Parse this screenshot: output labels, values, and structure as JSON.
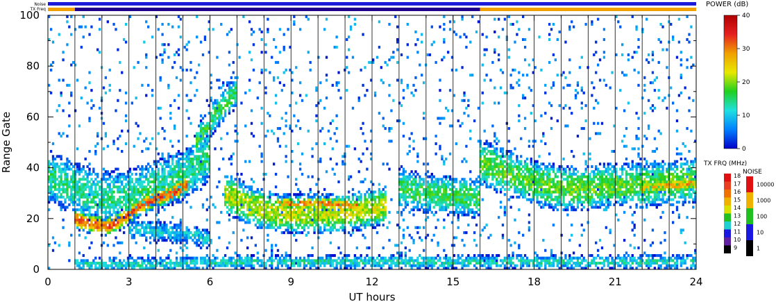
{
  "chart_data": {
    "type": "heatmap",
    "xlabel": "UT hours",
    "ylabel": "Range Gate",
    "xlim": [
      0,
      24
    ],
    "ylim": [
      0,
      100
    ],
    "x_ticks": [
      "0",
      "3",
      "6",
      "9",
      "12",
      "15",
      "18",
      "21",
      "24"
    ],
    "x_tick_values": [
      0,
      3,
      6,
      9,
      12,
      15,
      18,
      21,
      24
    ],
    "y_ticks": [
      "0",
      "20",
      "40",
      "60",
      "80",
      "100"
    ],
    "y_tick_values": [
      0,
      20,
      40,
      60,
      80,
      100
    ],
    "scan_boundaries_hours": [
      1.0,
      2.0,
      3.0,
      4.0,
      5.0,
      6.0,
      7.0,
      8.0,
      9.0,
      10.0,
      11.0,
      12.0,
      13.0,
      14.0,
      15.0,
      16.0,
      17.0,
      18.0,
      19.0,
      20.0,
      21.0,
      22.0,
      23.0
    ],
    "top_bars": {
      "noise_label": "Noise",
      "txfreq_label": "TX Freq",
      "noise_color": "#1a1ad8",
      "txfreq_segments": [
        {
          "start": 0.0,
          "end": 1.0,
          "color": "#f0a000"
        },
        {
          "start": 1.0,
          "end": 16.0,
          "color": "#20008c"
        },
        {
          "start": 16.0,
          "end": 24.0,
          "color": "#f0a000"
        }
      ]
    },
    "echo_bands": [
      {
        "t": [
          0.0,
          1.0,
          2.0,
          3.0,
          4.0,
          5.0,
          6.0
        ],
        "gate": [
          37,
          32,
          28,
          29,
          33,
          37,
          45
        ],
        "half_width": 8,
        "power_db": 14
      },
      {
        "t": [
          1.0,
          1.6,
          2.2,
          2.8,
          3.4,
          4.0,
          4.6,
          5.2
        ],
        "gate": [
          20,
          18,
          17,
          20,
          25,
          28,
          30,
          34
        ],
        "half_width": 3,
        "power_db": 32
      },
      {
        "t": [
          3.0,
          4.0,
          5.0,
          6.0
        ],
        "gate": [
          16,
          15,
          14,
          12
        ],
        "half_width": 3,
        "power_db": 10
      },
      {
        "t": [
          5.5,
          6.0,
          6.5,
          7.0
        ],
        "gate": [
          50,
          58,
          65,
          70
        ],
        "half_width": 5,
        "power_db": 16
      },
      {
        "t": [
          6.5,
          7.5,
          8.5,
          9.5,
          10.5,
          11.5,
          12.5
        ],
        "gate": [
          30,
          25,
          22,
          22,
          22,
          23,
          25
        ],
        "half_width": 6,
        "power_db": 22
      },
      {
        "t": [
          8.5,
          9.5,
          10.5,
          11.5
        ],
        "gate": [
          26,
          26,
          26,
          25
        ],
        "half_width": 2,
        "power_db": 30
      },
      {
        "t": [
          13.0,
          14.0,
          15.0,
          16.0
        ],
        "gate": [
          32,
          30,
          29,
          28
        ],
        "half_width": 6,
        "power_db": 16
      },
      {
        "t": [
          16.0,
          17.0,
          18.0,
          19.0,
          20.0,
          21.0,
          22.0,
          23.0,
          24.0
        ],
        "gate": [
          42,
          38,
          34,
          32,
          32,
          33,
          33,
          34,
          35
        ],
        "half_width": 7,
        "power_db": 18
      },
      {
        "t": [
          22.0,
          23.0,
          24.0
        ],
        "gate": [
          32,
          33,
          34
        ],
        "half_width": 2,
        "power_db": 28
      },
      {
        "t": [
          1.0,
          4.0,
          7.0,
          10.0,
          13.0,
          16.0,
          19.0,
          22.0,
          24.0
        ],
        "gate": [
          2,
          2,
          3,
          3,
          3,
          3,
          3,
          3,
          3
        ],
        "half_width": 2,
        "power_db": 12
      }
    ],
    "scatter_density": 0.05
  },
  "colorbars": {
    "power": {
      "title": "POWER (dB)",
      "ticks": [
        "40",
        "30",
        "20",
        "10",
        "0"
      ],
      "tick_values": [
        40,
        30,
        20,
        10,
        0
      ],
      "range": [
        0,
        40
      ],
      "gradient": [
        "#b00000",
        "#e52020",
        "#f0a000",
        "#e8e800",
        "#20d020",
        "#20e0e0",
        "#0080ff",
        "#0000c8"
      ]
    },
    "txfreq": {
      "title": "TX FRQ (MHz)",
      "ticks": [
        "18",
        "17",
        "16",
        "15",
        "14",
        "13",
        "12",
        "11",
        "10",
        "9"
      ],
      "colors": [
        "#e01010",
        "#e84020",
        "#f07000",
        "#f0b000",
        "#d8e000",
        "#20c020",
        "#20d0d0",
        "#1818e0",
        "#6020a0",
        "#000000"
      ]
    },
    "noise": {
      "title": "NOISE",
      "ticks": [
        "10000",
        "1000",
        "100",
        "10",
        "1"
      ],
      "colors": [
        "#e01010",
        "#f0b000",
        "#20c020",
        "#1818e0",
        "#000000"
      ]
    }
  }
}
